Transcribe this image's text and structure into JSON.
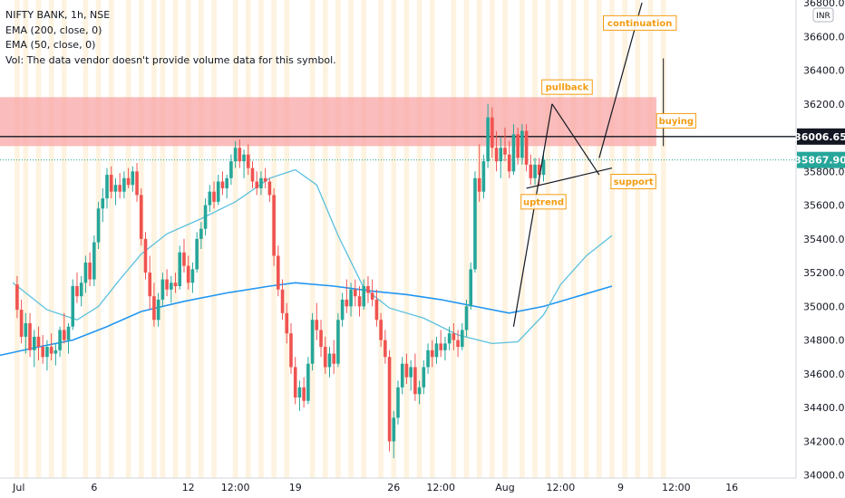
{
  "legend": {
    "symbol_line": "NIFTY BANK, 1h, NSE",
    "ema200": "EMA (200, close, 0)",
    "ema50": "EMA (50, close, 0)",
    "volume_note": "Vol: The data vendor doesn't provide volume data for this symbol."
  },
  "currency_badge": "INR",
  "colors": {
    "bull": "#26a69a",
    "bear": "#ef5350",
    "ema50": "#5bc0de",
    "ema200": "#2196f3",
    "zone": "#f8a5a5",
    "annotation": "#f39c12",
    "session_band": "#fdf3e0",
    "current_price": "#26a69a"
  },
  "chart_data": {
    "type": "candlestick",
    "title": "NIFTY BANK, 1h, NSE",
    "y_range": [
      33950,
      36800
    ],
    "y_ticks": [
      "36800.00",
      "36600.00",
      "36400.00",
      "36200.00",
      "36000.00",
      "35800.00",
      "35600.00",
      "35400.00",
      "35200.00",
      "35000.00",
      "34800.00",
      "34600.00",
      "34400.00",
      "34200.00",
      "34000.00"
    ],
    "x_labels": [
      {
        "label": "Jul",
        "x": 0
      },
      {
        "label": "6",
        "x": 19
      },
      {
        "label": "12",
        "x": 41
      },
      {
        "label": "12:00",
        "x": 52
      },
      {
        "label": "19",
        "x": 66
      },
      {
        "label": "26",
        "x": 89
      },
      {
        "label": "12:00",
        "x": 100
      },
      {
        "label": "Aug",
        "x": 115
      },
      {
        "label": "12:00",
        "x": 128
      },
      {
        "label": "9",
        "x": 142
      },
      {
        "label": "12:00",
        "x": 155
      },
      {
        "label": "16",
        "x": 168
      }
    ],
    "x_range": [
      -3,
      183
    ],
    "price_labels": {
      "resistance_line": "36006.65",
      "current_price": "35867.90"
    },
    "resistance_level": 36006.65,
    "current_price": 35867.9,
    "supply_zone": [
      35950,
      36240
    ],
    "candles": [
      [
        35130,
        35180,
        34930,
        34980
      ],
      [
        34980,
        35040,
        34780,
        34820
      ],
      [
        34820,
        34960,
        34720,
        34900
      ],
      [
        34900,
        34960,
        34700,
        34740
      ],
      [
        34740,
        34860,
        34640,
        34820
      ],
      [
        34820,
        34880,
        34680,
        34760
      ],
      [
        34760,
        34830,
        34660,
        34700
      ],
      [
        34700,
        34800,
        34620,
        34760
      ],
      [
        34760,
        34840,
        34680,
        34720
      ],
      [
        34720,
        34780,
        34650,
        34740
      ],
      [
        34740,
        34880,
        34700,
        34860
      ],
      [
        34860,
        34960,
        34780,
        34800
      ],
      [
        34800,
        34900,
        34720,
        34880
      ],
      [
        34880,
        35160,
        34860,
        35120
      ],
      [
        35120,
        35200,
        35020,
        35060
      ],
      [
        35060,
        35180,
        35000,
        35140
      ],
      [
        35140,
        35300,
        35080,
        35260
      ],
      [
        35260,
        35320,
        35120,
        35160
      ],
      [
        35160,
        35420,
        35120,
        35380
      ],
      [
        35380,
        35620,
        35340,
        35580
      ],
      [
        35580,
        35700,
        35500,
        35640
      ],
      [
        35640,
        35820,
        35580,
        35780
      ],
      [
        35780,
        35830,
        35640,
        35680
      ],
      [
        35680,
        35760,
        35600,
        35720
      ],
      [
        35720,
        35790,
        35640,
        35680
      ],
      [
        35680,
        35800,
        35640,
        35760
      ],
      [
        35760,
        35820,
        35700,
        35720
      ],
      [
        35720,
        35830,
        35680,
        35800
      ],
      [
        35800,
        35850,
        35620,
        35660
      ],
      [
        35660,
        35700,
        35360,
        35400
      ],
      [
        35400,
        35440,
        35160,
        35200
      ],
      [
        35200,
        35300,
        34980,
        35060
      ],
      [
        35060,
        35140,
        34880,
        34920
      ],
      [
        34920,
        35080,
        34880,
        35040
      ],
      [
        35040,
        35200,
        35000,
        35160
      ],
      [
        35160,
        35220,
        35060,
        35100
      ],
      [
        35100,
        35180,
        35020,
        35140
      ],
      [
        35140,
        35200,
        35080,
        35120
      ],
      [
        35120,
        35360,
        35100,
        35320
      ],
      [
        35320,
        35400,
        35200,
        35240
      ],
      [
        35240,
        35300,
        35100,
        35140
      ],
      [
        35140,
        35260,
        35080,
        35220
      ],
      [
        35220,
        35440,
        35200,
        35400
      ],
      [
        35400,
        35500,
        35340,
        35460
      ],
      [
        35460,
        35640,
        35420,
        35600
      ],
      [
        35600,
        35720,
        35560,
        35680
      ],
      [
        35680,
        35740,
        35580,
        35620
      ],
      [
        35620,
        35780,
        35600,
        35740
      ],
      [
        35740,
        35800,
        35660,
        35700
      ],
      [
        35700,
        35780,
        35640,
        35760
      ],
      [
        35760,
        35900,
        35720,
        35860
      ],
      [
        35860,
        35980,
        35820,
        35940
      ],
      [
        35940,
        35990,
        35820,
        35860
      ],
      [
        35860,
        35930,
        35760,
        35900
      ],
      [
        35900,
        35960,
        35780,
        35820
      ],
      [
        35820,
        35860,
        35700,
        35740
      ],
      [
        35740,
        35800,
        35660,
        35700
      ],
      [
        35700,
        35800,
        35660,
        35760
      ],
      [
        35760,
        35820,
        35700,
        35740
      ],
      [
        35740,
        35760,
        35620,
        35660
      ],
      [
        35660,
        35700,
        35240,
        35300
      ],
      [
        35300,
        35360,
        35060,
        35100
      ],
      [
        35100,
        35160,
        34920,
        34960
      ],
      [
        34960,
        35020,
        34780,
        34840
      ],
      [
        34840,
        34900,
        34600,
        34640
      ],
      [
        34640,
        34700,
        34420,
        34460
      ],
      [
        34460,
        34560,
        34380,
        34520
      ],
      [
        34520,
        34580,
        34400,
        34440
      ],
      [
        34440,
        34700,
        34420,
        34660
      ],
      [
        34660,
        34960,
        34620,
        34920
      ],
      [
        34920,
        35020,
        34800,
        34860
      ],
      [
        34860,
        34920,
        34700,
        34760
      ],
      [
        34760,
        34820,
        34600,
        34640
      ],
      [
        34640,
        34760,
        34580,
        34720
      ],
      [
        34720,
        34800,
        34600,
        34660
      ],
      [
        34660,
        34960,
        34640,
        34920
      ],
      [
        34920,
        35080,
        34880,
        35040
      ],
      [
        35040,
        35160,
        34960,
        35000
      ],
      [
        35000,
        35140,
        34940,
        35100
      ],
      [
        35100,
        35160,
        35000,
        35060
      ],
      [
        35060,
        35120,
        34940,
        35000
      ],
      [
        35000,
        35160,
        34980,
        35120
      ],
      [
        35120,
        35180,
        35020,
        35080
      ],
      [
        35080,
        35160,
        35000,
        35040
      ],
      [
        35040,
        35100,
        34880,
        34920
      ],
      [
        34920,
        34960,
        34760,
        34800
      ],
      [
        34800,
        34860,
        34660,
        34700
      ],
      [
        34700,
        34740,
        34140,
        34200
      ],
      [
        34200,
        34380,
        34100,
        34340
      ],
      [
        34340,
        34560,
        34300,
        34520
      ],
      [
        34520,
        34700,
        34480,
        34660
      ],
      [
        34660,
        34720,
        34540,
        34580
      ],
      [
        34580,
        34680,
        34500,
        34640
      ],
      [
        34640,
        34720,
        34440,
        34480
      ],
      [
        34480,
        34560,
        34420,
        34520
      ],
      [
        34520,
        34680,
        34480,
        34640
      ],
      [
        34640,
        34780,
        34600,
        34740
      ],
      [
        34740,
        34800,
        34640,
        34700
      ],
      [
        34700,
        34820,
        34660,
        34780
      ],
      [
        34780,
        34860,
        34700,
        34740
      ],
      [
        34740,
        34820,
        34680,
        34780
      ],
      [
        34780,
        34880,
        34740,
        34840
      ],
      [
        34840,
        34900,
        34740,
        34800
      ],
      [
        34800,
        34860,
        34700,
        34760
      ],
      [
        34760,
        34900,
        34740,
        34860
      ],
      [
        34860,
        35040,
        34820,
        35000
      ],
      [
        35000,
        35260,
        34980,
        35220
      ],
      [
        35220,
        35800,
        35200,
        35760
      ],
      [
        35760,
        35960,
        35620,
        35680
      ],
      [
        35680,
        35900,
        35640,
        35860
      ],
      [
        35860,
        36200,
        35820,
        36120
      ],
      [
        36120,
        36180,
        35880,
        35940
      ],
      [
        35940,
        36040,
        35800,
        35860
      ],
      [
        35860,
        36000,
        35760,
        35940
      ],
      [
        35940,
        36060,
        35860,
        35900
      ],
      [
        35900,
        35980,
        35760,
        35800
      ],
      [
        35800,
        36080,
        35780,
        36020
      ],
      [
        36020,
        36060,
        35840,
        35880
      ],
      [
        35880,
        36080,
        35840,
        36040
      ],
      [
        36040,
        36080,
        35800,
        35840
      ],
      [
        35840,
        35900,
        35720,
        35760
      ],
      [
        35760,
        35880,
        35720,
        35840
      ],
      [
        35840,
        35880,
        35720,
        35780
      ],
      [
        35780,
        35920,
        35740,
        35868
      ]
    ],
    "ema50": [
      [
        0,
        35140
      ],
      [
        8,
        34980
      ],
      [
        15,
        34920
      ],
      [
        20,
        35000
      ],
      [
        25,
        35160
      ],
      [
        30,
        35310
      ],
      [
        36,
        35430
      ],
      [
        44,
        35520
      ],
      [
        52,
        35620
      ],
      [
        60,
        35760
      ],
      [
        66,
        35810
      ],
      [
        71,
        35720
      ],
      [
        76,
        35420
      ],
      [
        82,
        35110
      ],
      [
        88,
        34990
      ],
      [
        96,
        34930
      ],
      [
        104,
        34830
      ],
      [
        112,
        34780
      ],
      [
        118,
        34790
      ],
      [
        124,
        34950
      ],
      [
        128,
        35130
      ],
      [
        134,
        35300
      ],
      [
        140,
        35420
      ]
    ],
    "ema200": [
      [
        -3,
        34710
      ],
      [
        6,
        34760
      ],
      [
        14,
        34800
      ],
      [
        22,
        34880
      ],
      [
        30,
        34970
      ],
      [
        40,
        35030
      ],
      [
        50,
        35080
      ],
      [
        60,
        35120
      ],
      [
        66,
        35140
      ],
      [
        75,
        35120
      ],
      [
        84,
        35090
      ],
      [
        92,
        35070
      ],
      [
        100,
        35040
      ],
      [
        108,
        35000
      ],
      [
        116,
        34960
      ],
      [
        124,
        35000
      ],
      [
        132,
        35060
      ],
      [
        140,
        35120
      ]
    ],
    "session_bands": [
      1,
      3,
      6,
      9,
      12,
      17,
      20,
      23,
      27,
      30,
      33,
      35,
      38,
      41,
      44,
      47,
      52,
      55,
      58,
      61,
      64,
      70,
      73,
      76,
      79,
      82,
      86,
      89,
      92,
      95,
      98,
      103,
      106,
      109,
      112,
      115,
      119,
      122,
      125,
      128,
      131,
      134,
      137,
      140,
      143,
      146,
      149,
      152
    ],
    "trendlines": [
      {
        "name": "uptrend-line",
        "from": [
          117,
          34880
        ],
        "to": [
          126,
          36200
        ]
      },
      {
        "name": "triangle-upper",
        "from": [
          126,
          36200
        ],
        "to": [
          137,
          35780
        ]
      },
      {
        "name": "triangle-lower",
        "from": [
          120,
          35700
        ],
        "to": [
          140,
          35820
        ]
      },
      {
        "name": "continuation-line",
        "from": [
          137,
          35880
        ],
        "to": [
          147,
          36800
        ]
      }
    ],
    "vertical_projection": {
      "x": 152,
      "from": 36470,
      "to": 35950
    },
    "annotations": [
      {
        "label": "continuation",
        "x": 146.5,
        "y": 36680
      },
      {
        "label": "pullback",
        "x": 129.5,
        "y": 36300
      },
      {
        "label": "buying",
        "x": 155,
        "y": 36100
      },
      {
        "label": "support",
        "x": 145,
        "y": 35740
      },
      {
        "label": "uptrend",
        "x": 124,
        "y": 35620
      }
    ]
  }
}
